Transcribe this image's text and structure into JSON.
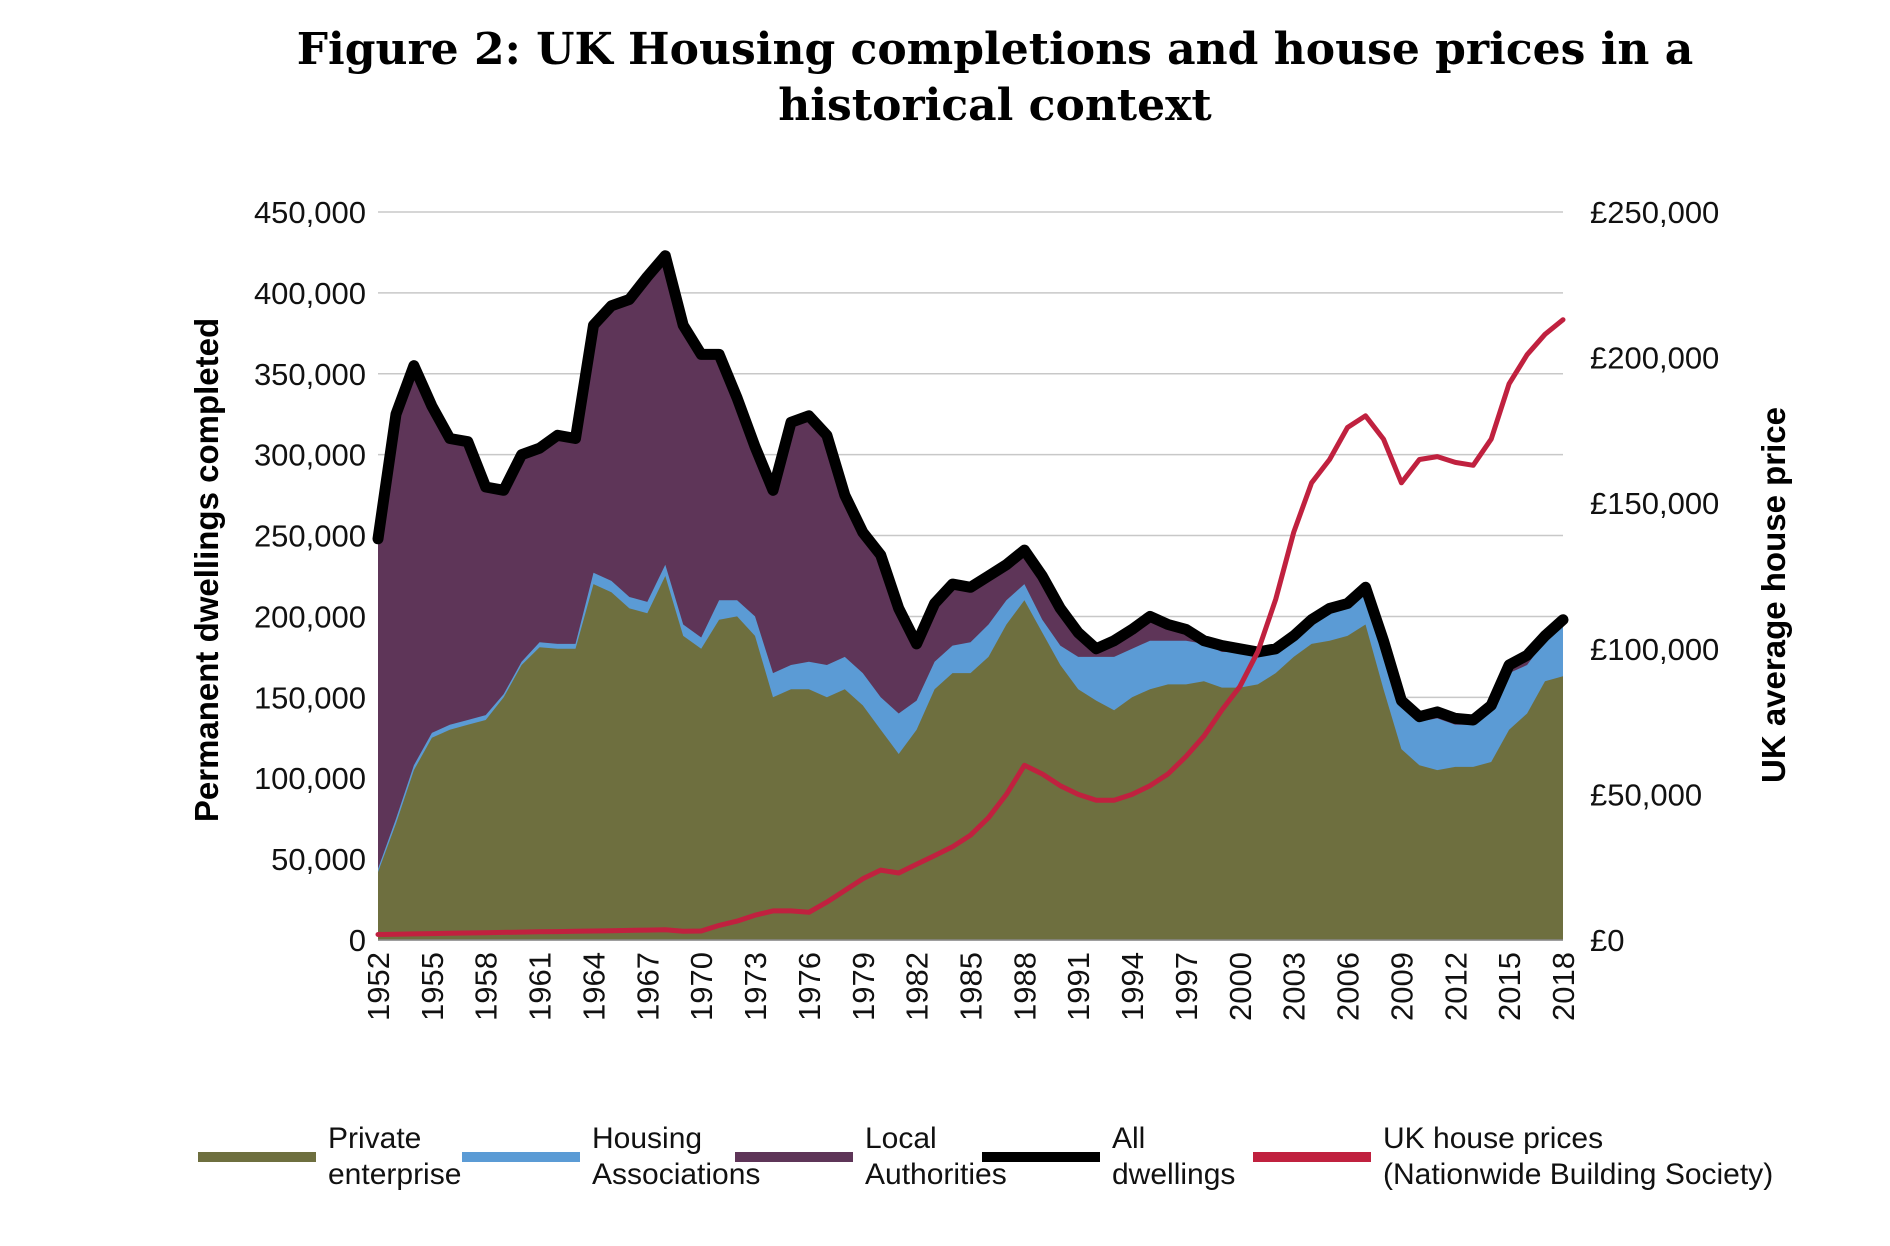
{
  "title": "Figure 2: UK Housing completions and house prices in a historical context",
  "chart_data": {
    "type": "area",
    "xlabel": "",
    "ylabel": "Permanent dwellings completed",
    "y2label": "UK average house price",
    "ylim": [
      0,
      450000
    ],
    "y2lim": [
      0,
      250000
    ],
    "yticks": [
      "0",
      "50,000",
      "100,000",
      "150,000",
      "200,000",
      "250,000",
      "300,000",
      "350,000",
      "400,000",
      "450,000"
    ],
    "y2ticks": [
      "£0",
      "£50,000",
      "£100,000",
      "£150,000",
      "£200,000",
      "£250,000"
    ],
    "xticks": [
      "1952",
      "1955",
      "1958",
      "1961",
      "1964",
      "1967",
      "1970",
      "1973",
      "1976",
      "1979",
      "1982",
      "1985",
      "1988",
      "1991",
      "1994",
      "1997",
      "2000",
      "2003",
      "2006",
      "2009",
      "2012",
      "2015",
      "2018"
    ],
    "grid": true,
    "legend_position": "bottom",
    "x": [
      1952,
      1953,
      1954,
      1955,
      1956,
      1957,
      1958,
      1959,
      1960,
      1961,
      1962,
      1963,
      1964,
      1965,
      1966,
      1967,
      1968,
      1969,
      1970,
      1971,
      1972,
      1973,
      1974,
      1975,
      1976,
      1977,
      1978,
      1979,
      1980,
      1981,
      1982,
      1983,
      1984,
      1985,
      1986,
      1987,
      1988,
      1989,
      1990,
      1991,
      1992,
      1993,
      1994,
      1995,
      1996,
      1997,
      1998,
      1999,
      2000,
      2001,
      2002,
      2003,
      2004,
      2005,
      2006,
      2007,
      2008,
      2009,
      2010,
      2011,
      2012,
      2013,
      2014,
      2015,
      2016,
      2017,
      2018
    ],
    "series": [
      {
        "name": "Private enterprise",
        "color": "#6e6f3f",
        "kind": "area",
        "values": [
          42000,
          72000,
          105000,
          125000,
          130000,
          133000,
          136000,
          150000,
          170000,
          181000,
          180000,
          180000,
          220000,
          215000,
          205000,
          202000,
          225000,
          188000,
          180000,
          198000,
          200000,
          188000,
          150000,
          155000,
          155000,
          150000,
          155000,
          145000,
          130000,
          115000,
          130000,
          155000,
          165000,
          165000,
          175000,
          195000,
          210000,
          190000,
          170000,
          155000,
          148000,
          142000,
          150000,
          155000,
          158000,
          158000,
          160000,
          156000,
          156000,
          158000,
          165000,
          175000,
          183000,
          185000,
          188000,
          195000,
          155000,
          118000,
          108000,
          105000,
          107000,
          107000,
          110000,
          130000,
          140000,
          160000,
          163000
        ]
      },
      {
        "name": "Housing Associations",
        "color": "#5b9bd5",
        "kind": "area",
        "values": [
          44000,
          75000,
          108000,
          128000,
          133000,
          136000,
          139000,
          152000,
          172000,
          184000,
          183000,
          183000,
          227000,
          222000,
          212000,
          209000,
          232000,
          195000,
          187000,
          210000,
          210000,
          200000,
          165000,
          170000,
          172000,
          170000,
          175000,
          165000,
          150000,
          140000,
          148000,
          172000,
          182000,
          184000,
          195000,
          210000,
          220000,
          198000,
          182000,
          175000,
          175000,
          175000,
          180000,
          185000,
          185000,
          185000,
          183000,
          178000,
          178000,
          176000,
          180000,
          188000,
          198000,
          202000,
          205000,
          215000,
          175000,
          145000,
          135000,
          137000,
          133000,
          133000,
          142000,
          165000,
          170000,
          185000,
          198000
        ]
      },
      {
        "name": "Local Authorities",
        "color": "#5e3558",
        "kind": "area",
        "values": [
          248000,
          325000,
          355000,
          330000,
          310000,
          308000,
          280000,
          278000,
          300000,
          304000,
          312000,
          310000,
          380000,
          392000,
          396000,
          410000,
          423000,
          380000,
          362000,
          362000,
          335000,
          305000,
          278000,
          320000,
          324000,
          312000,
          275000,
          252000,
          238000,
          205000,
          183000,
          208000,
          220000,
          218000,
          225000,
          232000,
          241000,
          225000,
          205000,
          190000,
          180000,
          185000,
          192000,
          200000,
          195000,
          192000,
          185000,
          182000,
          180000,
          178000,
          180000,
          188000,
          198000,
          205000,
          208000,
          218000,
          185000,
          148000,
          138000,
          141000,
          137000,
          136000,
          145000,
          170000,
          176000,
          188000,
          198000
        ]
      },
      {
        "name": "All dwellings",
        "color": "#000000",
        "kind": "line",
        "values": [
          248000,
          325000,
          355000,
          330000,
          310000,
          308000,
          280000,
          278000,
          300000,
          304000,
          312000,
          310000,
          380000,
          392000,
          396000,
          410000,
          423000,
          380000,
          362000,
          362000,
          335000,
          305000,
          278000,
          320000,
          324000,
          312000,
          275000,
          252000,
          238000,
          205000,
          183000,
          208000,
          220000,
          218000,
          225000,
          232000,
          241000,
          225000,
          205000,
          190000,
          180000,
          185000,
          192000,
          200000,
          195000,
          192000,
          185000,
          182000,
          180000,
          178000,
          180000,
          188000,
          198000,
          205000,
          208000,
          218000,
          185000,
          148000,
          138000,
          141000,
          137000,
          136000,
          145000,
          170000,
          176000,
          188000,
          198000
        ]
      },
      {
        "name": "UK house prices (Nationwide Building Society)",
        "color": "#c0213f",
        "kind": "line",
        "axis": "right",
        "values": [
          1900,
          2000,
          2100,
          2200,
          2300,
          2400,
          2500,
          2600,
          2700,
          2800,
          2900,
          3000,
          3100,
          3200,
          3300,
          3400,
          3500,
          3000,
          3100,
          5000,
          6500,
          8500,
          10000,
          10000,
          9500,
          13000,
          17000,
          21000,
          24000,
          23000,
          26000,
          29000,
          32000,
          36000,
          42000,
          50000,
          60000,
          57000,
          53000,
          50000,
          48000,
          48000,
          50000,
          53000,
          57000,
          63000,
          70000,
          79000,
          87000,
          99000,
          117000,
          140000,
          157000,
          165000,
          176000,
          180000,
          172000,
          157000,
          165000,
          166000,
          164000,
          163000,
          172000,
          191000,
          201000,
          208000,
          213000
        ]
      }
    ]
  },
  "legend": [
    {
      "line1": "Private",
      "line2": "enterprise",
      "color": "#6e6f3f"
    },
    {
      "line1": "Housing",
      "line2": "Associations",
      "color": "#5b9bd5"
    },
    {
      "line1": "Local",
      "line2": "Authorities",
      "color": "#5e3558"
    },
    {
      "line1": "All",
      "line2": "dwellings",
      "color": "#000000"
    },
    {
      "line1": "UK house prices",
      "line2": "(Nationwide Building Society)",
      "color": "#c0213f"
    }
  ]
}
